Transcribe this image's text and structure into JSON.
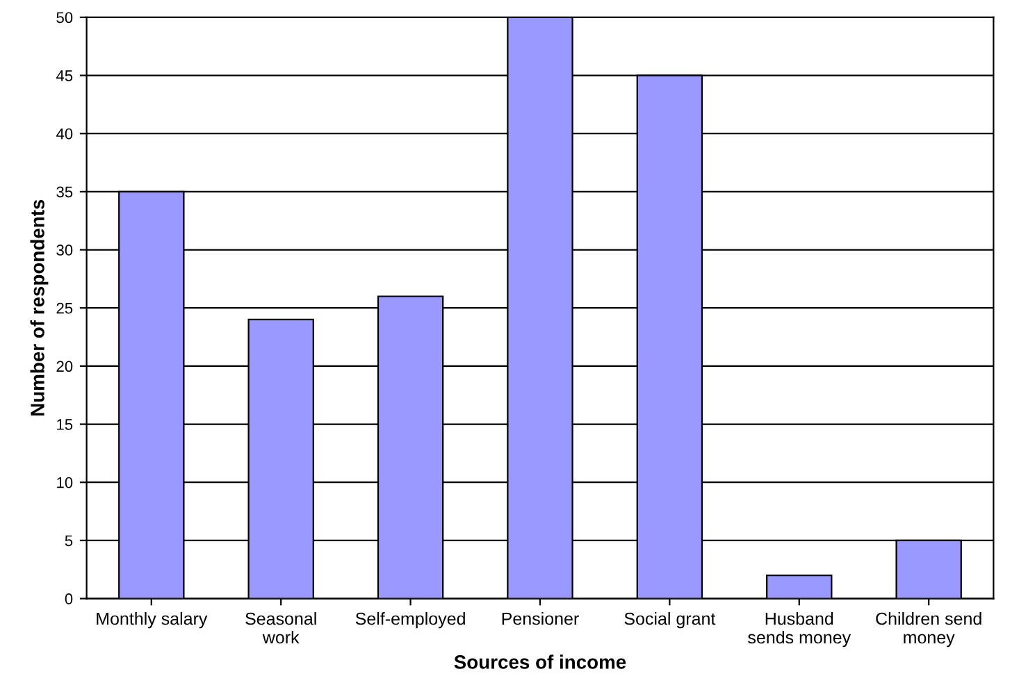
{
  "chart_data": {
    "type": "bar",
    "xlabel": "Sources of income",
    "ylabel": "Number of respondents",
    "categories": [
      "Monthly salary",
      "Seasonal\nwork",
      "Self-employed",
      "Pensioner",
      "Social grant",
      "Husband\nsends money",
      "Children send\nmoney"
    ],
    "values": [
      35,
      24,
      26,
      50,
      45,
      2,
      5
    ],
    "color": "#9999ff",
    "ylim": [
      0,
      50
    ],
    "yticks": [
      0,
      5,
      10,
      15,
      20,
      25,
      30,
      35,
      40,
      45,
      50
    ],
    "grid": "y"
  }
}
